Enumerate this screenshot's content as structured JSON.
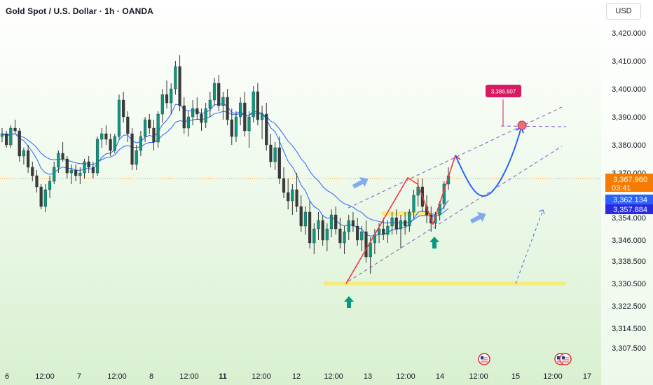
{
  "header": {
    "title": "Gold Spot / U.S. Dollar · 1h · OANDA",
    "currency": "USD"
  },
  "colors": {
    "up": "#089981",
    "down": "#f23645",
    "candle_body": "#3a3a3a",
    "ma_line": "#2962ff",
    "trend_line": "#f23645",
    "forecast_curve": "#2962ff",
    "channel": "#7e57c2",
    "support_zone": "#f7e96b",
    "arrow_up": "#089981",
    "arrow_blue": "#6d9cf0",
    "target_label": "#d81b60",
    "price_tag_orange": "#f57c00",
    "price_tag_blue": "#2962ff",
    "price_tag_navy": "#2a2ae0"
  },
  "chart_data": {
    "type": "candlestick",
    "title": "Gold Spot / U.S. Dollar · 1h · OANDA",
    "y_ticks": [
      "3,420.000",
      "3,410.000",
      "3,400.000",
      "3,390.000",
      "3,380.000",
      "3,370.000",
      "3,354.000",
      "3,346.000",
      "3,338.500",
      "3,330.500",
      "3,322.500",
      "3,314.500",
      "3,307.500"
    ],
    "y_tick_values": [
      3420,
      3410,
      3400,
      3390,
      3380,
      3370,
      3354,
      3346,
      3338.5,
      3330.5,
      3322.5,
      3314.5,
      3307.5
    ],
    "x_ticks": [
      "6",
      "12:00",
      "7",
      "12:00",
      "8",
      "12:00",
      "11",
      "12:00",
      "12",
      "12:00",
      "13",
      "12:00",
      "14",
      "12:00",
      "15",
      "12:00",
      "17"
    ],
    "x_ticks_bold": [
      6
    ],
    "last_price": "3,367.960",
    "countdown": "03:41",
    "ma_values": [
      "3,362.134",
      "3,357.884"
    ],
    "target_label": "3,386.607",
    "candles": [
      [
        3383,
        3386,
        3381,
        3384
      ],
      [
        3384,
        3385,
        3379,
        3380
      ],
      [
        3380,
        3387,
        3379,
        3386
      ],
      [
        3386,
        3389,
        3384,
        3385
      ],
      [
        3385,
        3386,
        3374,
        3376
      ],
      [
        3376,
        3379,
        3373,
        3378
      ],
      [
        3378,
        3380,
        3370,
        3372
      ],
      [
        3372,
        3374,
        3367,
        3369
      ],
      [
        3369,
        3371,
        3363,
        3365
      ],
      [
        3365,
        3366,
        3357,
        3358
      ],
      [
        3358,
        3366,
        3356,
        3364
      ],
      [
        3364,
        3369,
        3361,
        3367
      ],
      [
        3367,
        3374,
        3366,
        3372
      ],
      [
        3372,
        3378,
        3370,
        3377
      ],
      [
        3377,
        3381,
        3374,
        3375
      ],
      [
        3375,
        3376,
        3368,
        3370
      ],
      [
        3370,
        3373,
        3366,
        3371
      ],
      [
        3371,
        3373,
        3367,
        3369
      ],
      [
        3369,
        3372,
        3366,
        3370
      ],
      [
        3370,
        3375,
        3368,
        3374
      ],
      [
        3374,
        3376,
        3370,
        3372
      ],
      [
        3372,
        3374,
        3368,
        3370
      ],
      [
        3370,
        3383,
        3369,
        3382
      ],
      [
        3382,
        3386,
        3379,
        3384
      ],
      [
        3384,
        3387,
        3380,
        3382
      ],
      [
        3382,
        3384,
        3376,
        3378
      ],
      [
        3378,
        3384,
        3377,
        3383
      ],
      [
        3383,
        3398,
        3382,
        3396
      ],
      [
        3396,
        3399,
        3388,
        3390
      ],
      [
        3390,
        3392,
        3381,
        3384
      ],
      [
        3384,
        3386,
        3371,
        3373
      ],
      [
        3373,
        3380,
        3371,
        3378
      ],
      [
        3378,
        3385,
        3376,
        3383
      ],
      [
        3383,
        3390,
        3381,
        3389
      ],
      [
        3389,
        3391,
        3384,
        3386
      ],
      [
        3386,
        3389,
        3378,
        3381
      ],
      [
        3381,
        3392,
        3379,
        3391
      ],
      [
        3391,
        3400,
        3388,
        3398
      ],
      [
        3398,
        3403,
        3393,
        3395
      ],
      [
        3395,
        3402,
        3391,
        3400
      ],
      [
        3400,
        3410,
        3398,
        3408
      ],
      [
        3408,
        3412,
        3392,
        3394
      ],
      [
        3394,
        3397,
        3384,
        3386
      ],
      [
        3386,
        3392,
        3383,
        3390
      ],
      [
        3390,
        3396,
        3387,
        3393
      ],
      [
        3393,
        3397,
        3389,
        3391
      ],
      [
        3391,
        3393,
        3385,
        3388
      ],
      [
        3388,
        3395,
        3386,
        3393
      ],
      [
        3393,
        3399,
        3390,
        3396
      ],
      [
        3396,
        3404,
        3394,
        3402
      ],
      [
        3402,
        3405,
        3392,
        3394
      ],
      [
        3394,
        3399,
        3389,
        3397
      ],
      [
        3397,
        3400,
        3387,
        3389
      ],
      [
        3389,
        3393,
        3380,
        3383
      ],
      [
        3383,
        3392,
        3381,
        3390
      ],
      [
        3390,
        3397,
        3387,
        3395
      ],
      [
        3395,
        3399,
        3383,
        3385
      ],
      [
        3385,
        3392,
        3379,
        3390
      ],
      [
        3390,
        3401,
        3388,
        3399
      ],
      [
        3399,
        3402,
        3387,
        3389
      ],
      [
        3389,
        3394,
        3382,
        3391
      ],
      [
        3391,
        3395,
        3378,
        3380
      ],
      [
        3380,
        3384,
        3372,
        3374
      ],
      [
        3374,
        3381,
        3371,
        3379
      ],
      [
        3379,
        3383,
        3366,
        3368
      ],
      [
        3368,
        3372,
        3361,
        3363
      ],
      [
        3363,
        3368,
        3357,
        3360
      ],
      [
        3360,
        3366,
        3355,
        3364
      ],
      [
        3364,
        3370,
        3356,
        3358
      ],
      [
        3358,
        3362,
        3349,
        3351
      ],
      [
        3351,
        3358,
        3348,
        3356
      ],
      [
        3356,
        3360,
        3343,
        3345
      ],
      [
        3345,
        3352,
        3341,
        3350
      ],
      [
        3350,
        3356,
        3346,
        3353
      ],
      [
        3353,
        3355,
        3344,
        3346
      ],
      [
        3346,
        3352,
        3342,
        3350
      ],
      [
        3350,
        3357,
        3347,
        3355
      ],
      [
        3355,
        3358,
        3348,
        3350
      ],
      [
        3350,
        3354,
        3343,
        3345
      ],
      [
        3345,
        3351,
        3341,
        3349
      ],
      [
        3349,
        3355,
        3346,
        3353
      ],
      [
        3353,
        3356,
        3349,
        3351
      ],
      [
        3351,
        3354,
        3344,
        3346
      ],
      [
        3346,
        3351,
        3342,
        3349
      ],
      [
        3349,
        3353,
        3338,
        3340
      ],
      [
        3340,
        3347,
        3334,
        3345
      ],
      [
        3345,
        3350,
        3341,
        3348
      ],
      [
        3348,
        3352,
        3345,
        3350
      ],
      [
        3350,
        3354,
        3346,
        3348
      ],
      [
        3348,
        3353,
        3345,
        3351
      ],
      [
        3351,
        3356,
        3348,
        3354
      ],
      [
        3354,
        3357,
        3348,
        3350
      ],
      [
        3350,
        3355,
        3343,
        3353
      ],
      [
        3353,
        3356,
        3348,
        3351
      ],
      [
        3351,
        3357,
        3349,
        3356
      ],
      [
        3356,
        3364,
        3354,
        3362
      ],
      [
        3362,
        3368,
        3358,
        3365
      ],
      [
        3365,
        3368,
        3356,
        3358
      ],
      [
        3358,
        3362,
        3352,
        3355
      ],
      [
        3355,
        3358,
        3349,
        3352
      ],
      [
        3352,
        3356,
        3350,
        3355
      ],
      [
        3355,
        3360,
        3353,
        3359
      ],
      [
        3359,
        3367,
        3357,
        3366
      ],
      [
        3366,
        3372,
        3364,
        3369
      ]
    ]
  }
}
